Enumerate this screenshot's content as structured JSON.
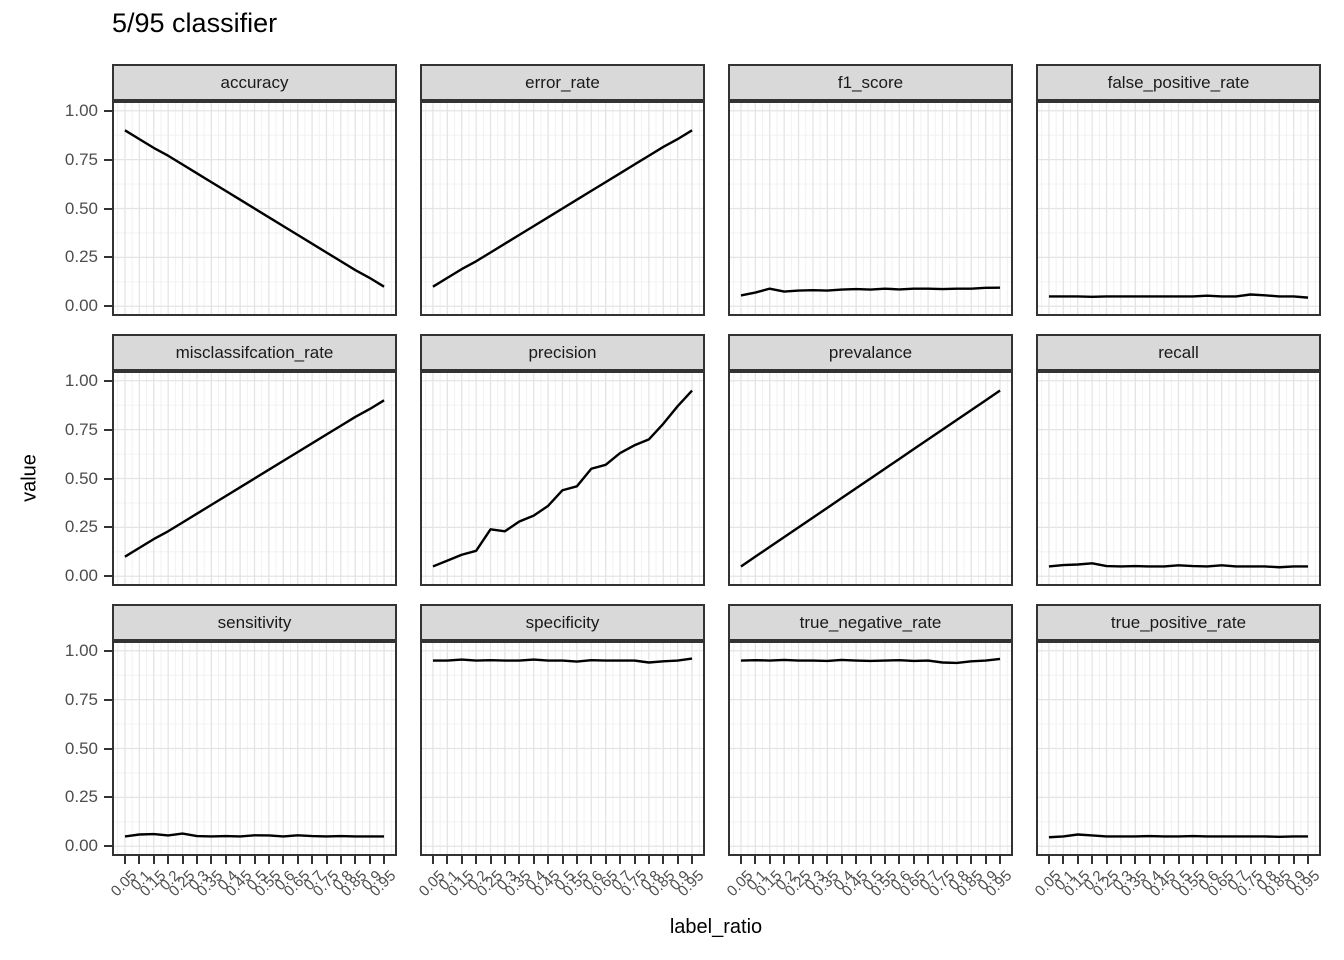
{
  "title": "5/95 classifier",
  "x_axis": {
    "title": "label_ratio",
    "tick_labels": [
      "0.05",
      "0.1",
      "0.15",
      "0.2",
      "0.25",
      "0.3",
      "0.35",
      "0.4",
      "0.45",
      "0.5",
      "0.55",
      "0.6",
      "0.65",
      "0.7",
      "0.75",
      "0.8",
      "0.85",
      "0.9",
      "0.95"
    ]
  },
  "y_axis": {
    "title": "value",
    "tick_labels": [
      "1.00",
      "0.75",
      "0.50",
      "0.25",
      "0.00"
    ]
  },
  "colors": {
    "strip_background": "#d9d9d9",
    "panel_border": "#333333",
    "grid_major": "#e4e4e4",
    "grid_minor": "#f0f0f0",
    "series_line": "#000000",
    "tick_label": "#4d4d4d"
  },
  "chart_data": {
    "type": "line",
    "title": "5/95 classifier",
    "xlabel": "label_ratio",
    "ylabel": "value",
    "grid": true,
    "legend": false,
    "ylim": [
      0,
      1
    ],
    "y_breaks": [
      0,
      0.25,
      0.5,
      0.75,
      1.0
    ],
    "x": [
      0.05,
      0.1,
      0.15,
      0.2,
      0.25,
      0.3,
      0.35,
      0.4,
      0.45,
      0.5,
      0.55,
      0.6,
      0.65,
      0.7,
      0.75,
      0.8,
      0.85,
      0.9,
      0.95
    ],
    "facet_layout": {
      "rows": 3,
      "cols": 4
    },
    "facets": [
      {
        "name": "accuracy",
        "values": [
          0.9,
          0.855,
          0.81,
          0.77,
          0.725,
          0.68,
          0.635,
          0.59,
          0.545,
          0.5,
          0.455,
          0.41,
          0.365,
          0.32,
          0.275,
          0.23,
          0.185,
          0.145,
          0.1
        ]
      },
      {
        "name": "error_rate",
        "values": [
          0.1,
          0.145,
          0.19,
          0.23,
          0.275,
          0.32,
          0.365,
          0.41,
          0.455,
          0.5,
          0.545,
          0.59,
          0.635,
          0.68,
          0.725,
          0.77,
          0.815,
          0.855,
          0.9
        ]
      },
      {
        "name": "f1_score",
        "values": [
          0.055,
          0.07,
          0.09,
          0.075,
          0.08,
          0.082,
          0.08,
          0.085,
          0.088,
          0.085,
          0.09,
          0.086,
          0.09,
          0.09,
          0.088,
          0.09,
          0.09,
          0.094,
          0.095
        ]
      },
      {
        "name": "false_positive_rate",
        "values": [
          0.05,
          0.05,
          0.05,
          0.048,
          0.05,
          0.05,
          0.05,
          0.05,
          0.05,
          0.05,
          0.05,
          0.054,
          0.05,
          0.05,
          0.06,
          0.056,
          0.05,
          0.05,
          0.044
        ]
      },
      {
        "name": "misclassifcation_rate",
        "values": [
          0.1,
          0.145,
          0.19,
          0.23,
          0.275,
          0.32,
          0.365,
          0.41,
          0.455,
          0.5,
          0.545,
          0.59,
          0.635,
          0.68,
          0.725,
          0.77,
          0.815,
          0.855,
          0.9
        ]
      },
      {
        "name": "precision",
        "values": [
          0.05,
          0.08,
          0.11,
          0.13,
          0.24,
          0.23,
          0.28,
          0.31,
          0.36,
          0.44,
          0.46,
          0.55,
          0.57,
          0.63,
          0.67,
          0.7,
          0.78,
          0.87,
          0.95
        ]
      },
      {
        "name": "prevalance",
        "values": [
          0.05,
          0.1,
          0.15,
          0.2,
          0.25,
          0.3,
          0.35,
          0.4,
          0.45,
          0.5,
          0.55,
          0.6,
          0.65,
          0.7,
          0.75,
          0.8,
          0.85,
          0.9,
          0.95
        ]
      },
      {
        "name": "recall",
        "values": [
          0.05,
          0.057,
          0.06,
          0.066,
          0.052,
          0.05,
          0.052,
          0.05,
          0.05,
          0.056,
          0.052,
          0.05,
          0.056,
          0.05,
          0.05,
          0.05,
          0.046,
          0.05,
          0.05
        ]
      },
      {
        "name": "sensitivity",
        "values": [
          0.05,
          0.06,
          0.062,
          0.055,
          0.065,
          0.052,
          0.05,
          0.052,
          0.05,
          0.056,
          0.055,
          0.05,
          0.056,
          0.052,
          0.05,
          0.052,
          0.05,
          0.05,
          0.05
        ]
      },
      {
        "name": "specificity",
        "values": [
          0.95,
          0.95,
          0.955,
          0.95,
          0.952,
          0.95,
          0.95,
          0.955,
          0.95,
          0.95,
          0.945,
          0.952,
          0.95,
          0.95,
          0.95,
          0.94,
          0.946,
          0.95,
          0.96
        ]
      },
      {
        "name": "true_negative_rate",
        "values": [
          0.95,
          0.952,
          0.95,
          0.953,
          0.95,
          0.95,
          0.948,
          0.953,
          0.95,
          0.948,
          0.95,
          0.952,
          0.948,
          0.95,
          0.94,
          0.938,
          0.946,
          0.95,
          0.958
        ]
      },
      {
        "name": "true_positive_rate",
        "values": [
          0.046,
          0.05,
          0.06,
          0.055,
          0.05,
          0.05,
          0.05,
          0.052,
          0.05,
          0.05,
          0.052,
          0.05,
          0.05,
          0.05,
          0.05,
          0.05,
          0.048,
          0.05,
          0.05
        ]
      }
    ]
  }
}
